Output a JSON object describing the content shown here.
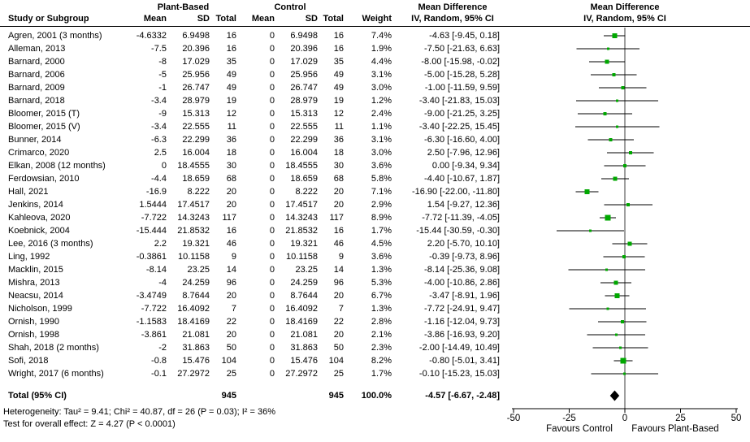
{
  "groups": {
    "plant_based": "Plant-Based",
    "control": "Control"
  },
  "columns": {
    "study": "Study or Subgroup",
    "mean": "Mean",
    "sd": "SD",
    "total": "Total",
    "weight": "Weight"
  },
  "md_header": {
    "line1": "Mean Difference",
    "line2": "IV, Random, 95% CI"
  },
  "footer": {
    "heterogeneity": "Heterogeneity: Tau² = 9.41; Chi² = 40.87, df = 26 (P = 0.03); I² = 36%",
    "overall_effect": "Test for overall effect: Z = 4.27 (P < 0.0001)"
  },
  "colors": {
    "marker": "#00a800",
    "diamond": "#000000",
    "line": "#000000",
    "zero_line": "#3c3c3c"
  },
  "chart_data": {
    "type": "scatter",
    "subtype": "forest-plot",
    "title": "Mean Difference IV, Random, 95% CI",
    "x_axis": {
      "range": [
        -50,
        50
      ],
      "ticks": [
        "-50",
        "-25",
        "0",
        "25",
        "50"
      ],
      "left_label": "Favours Control",
      "right_label": "Favours Plant-Based"
    },
    "studies": [
      {
        "name": "Agren, 2001 (3 months)",
        "pb_mean": "-4.6332",
        "pb_sd": "6.9498",
        "pb_total": "16",
        "c_mean": "0",
        "c_sd": "6.9498",
        "c_total": "16",
        "weight": "7.4%",
        "ci_text": "-4.63 [-9.45, 0.18]",
        "md": -4.63,
        "ci_low": -9.45,
        "ci_high": 0.18
      },
      {
        "name": "Alleman, 2013",
        "pb_mean": "-7.5",
        "pb_sd": "20.396",
        "pb_total": "16",
        "c_mean": "0",
        "c_sd": "20.396",
        "c_total": "16",
        "weight": "1.9%",
        "ci_text": "-7.50 [-21.63, 6.63]",
        "md": -7.5,
        "ci_low": -21.63,
        "ci_high": 6.63
      },
      {
        "name": "Barnard, 2000",
        "pb_mean": "-8",
        "pb_sd": "17.029",
        "pb_total": "35",
        "c_mean": "0",
        "c_sd": "17.029",
        "c_total": "35",
        "weight": "4.4%",
        "ci_text": "-8.00 [-15.98, -0.02]",
        "md": -8.0,
        "ci_low": -15.98,
        "ci_high": -0.02
      },
      {
        "name": "Barnard, 2006",
        "pb_mean": "-5",
        "pb_sd": "25.956",
        "pb_total": "49",
        "c_mean": "0",
        "c_sd": "25.956",
        "c_total": "49",
        "weight": "3.1%",
        "ci_text": "-5.00 [-15.28, 5.28]",
        "md": -5.0,
        "ci_low": -15.28,
        "ci_high": 5.28
      },
      {
        "name": "Barnard, 2009",
        "pb_mean": "-1",
        "pb_sd": "26.747",
        "pb_total": "49",
        "c_mean": "0",
        "c_sd": "26.747",
        "c_total": "49",
        "weight": "3.0%",
        "ci_text": "-1.00 [-11.59, 9.59]",
        "md": -1.0,
        "ci_low": -11.59,
        "ci_high": 9.59
      },
      {
        "name": "Barnard, 2018",
        "pb_mean": "-3.4",
        "pb_sd": "28.979",
        "pb_total": "19",
        "c_mean": "0",
        "c_sd": "28.979",
        "c_total": "19",
        "weight": "1.2%",
        "ci_text": "-3.40 [-21.83, 15.03]",
        "md": -3.4,
        "ci_low": -21.83,
        "ci_high": 15.03
      },
      {
        "name": "Bloomer, 2015 (T)",
        "pb_mean": "-9",
        "pb_sd": "15.313",
        "pb_total": "12",
        "c_mean": "0",
        "c_sd": "15.313",
        "c_total": "12",
        "weight": "2.4%",
        "ci_text": "-9.00 [-21.25, 3.25]",
        "md": -9.0,
        "ci_low": -21.25,
        "ci_high": 3.25
      },
      {
        "name": "Bloomer, 2015 (V)",
        "pb_mean": "-3.4",
        "pb_sd": "22.555",
        "pb_total": "11",
        "c_mean": "0",
        "c_sd": "22.555",
        "c_total": "11",
        "weight": "1.1%",
        "ci_text": "-3.40 [-22.25, 15.45]",
        "md": -3.4,
        "ci_low": -22.25,
        "ci_high": 15.45
      },
      {
        "name": "Bunner, 2014",
        "pb_mean": "-6.3",
        "pb_sd": "22.299",
        "pb_total": "36",
        "c_mean": "0",
        "c_sd": "22.299",
        "c_total": "36",
        "weight": "3.1%",
        "ci_text": "-6.30 [-16.60, 4.00]",
        "md": -6.3,
        "ci_low": -16.6,
        "ci_high": 4.0
      },
      {
        "name": "Crimarco, 2020",
        "pb_mean": "2.5",
        "pb_sd": "16.004",
        "pb_total": "18",
        "c_mean": "0",
        "c_sd": "16.004",
        "c_total": "18",
        "weight": "3.0%",
        "ci_text": "2.50 [-7.96, 12.96]",
        "md": 2.5,
        "ci_low": -7.96,
        "ci_high": 12.96
      },
      {
        "name": "Elkan, 2008 (12 months)",
        "pb_mean": "0",
        "pb_sd": "18.4555",
        "pb_total": "30",
        "c_mean": "0",
        "c_sd": "18.4555",
        "c_total": "30",
        "weight": "3.6%",
        "ci_text": "0.00 [-9.34, 9.34]",
        "md": 0.0,
        "ci_low": -9.34,
        "ci_high": 9.34
      },
      {
        "name": "Ferdowsian, 2010",
        "pb_mean": "-4.4",
        "pb_sd": "18.659",
        "pb_total": "68",
        "c_mean": "0",
        "c_sd": "18.659",
        "c_total": "68",
        "weight": "5.8%",
        "ci_text": "-4.40 [-10.67, 1.87]",
        "md": -4.4,
        "ci_low": -10.67,
        "ci_high": 1.87
      },
      {
        "name": "Hall, 2021",
        "pb_mean": "-16.9",
        "pb_sd": "8.222",
        "pb_total": "20",
        "c_mean": "0",
        "c_sd": "8.222",
        "c_total": "20",
        "weight": "7.1%",
        "ci_text": "-16.90 [-22.00, -11.80]",
        "md": -16.9,
        "ci_low": -22.0,
        "ci_high": -11.8
      },
      {
        "name": "Jenkins, 2014",
        "pb_mean": "1.5444",
        "pb_sd": "17.4517",
        "pb_total": "20",
        "c_mean": "0",
        "c_sd": "17.4517",
        "c_total": "20",
        "weight": "2.9%",
        "ci_text": "1.54 [-9.27, 12.36]",
        "md": 1.54,
        "ci_low": -9.27,
        "ci_high": 12.36
      },
      {
        "name": "Kahleova, 2020",
        "pb_mean": "-7.722",
        "pb_sd": "14.3243",
        "pb_total": "117",
        "c_mean": "0",
        "c_sd": "14.3243",
        "c_total": "117",
        "weight": "8.9%",
        "ci_text": "-7.72 [-11.39, -4.05]",
        "md": -7.72,
        "ci_low": -11.39,
        "ci_high": -4.05
      },
      {
        "name": "Koebnick, 2004",
        "pb_mean": "-15.444",
        "pb_sd": "21.8532",
        "pb_total": "16",
        "c_mean": "0",
        "c_sd": "21.8532",
        "c_total": "16",
        "weight": "1.7%",
        "ci_text": "-15.44 [-30.59, -0.30]",
        "md": -15.44,
        "ci_low": -30.59,
        "ci_high": -0.3
      },
      {
        "name": "Lee, 2016 (3 months)",
        "pb_mean": "2.2",
        "pb_sd": "19.321",
        "pb_total": "46",
        "c_mean": "0",
        "c_sd": "19.321",
        "c_total": "46",
        "weight": "4.5%",
        "ci_text": "2.20 [-5.70, 10.10]",
        "md": 2.2,
        "ci_low": -5.7,
        "ci_high": 10.1
      },
      {
        "name": "Ling, 1992",
        "pb_mean": "-0.3861",
        "pb_sd": "10.1158",
        "pb_total": "9",
        "c_mean": "0",
        "c_sd": "10.1158",
        "c_total": "9",
        "weight": "3.6%",
        "ci_text": "-0.39 [-9.73, 8.96]",
        "md": -0.39,
        "ci_low": -9.73,
        "ci_high": 8.96
      },
      {
        "name": "Macklin, 2015",
        "pb_mean": "-8.14",
        "pb_sd": "23.25",
        "pb_total": "14",
        "c_mean": "0",
        "c_sd": "23.25",
        "c_total": "14",
        "weight": "1.3%",
        "ci_text": "-8.14 [-25.36, 9.08]",
        "md": -8.14,
        "ci_low": -25.36,
        "ci_high": 9.08
      },
      {
        "name": "Mishra, 2013",
        "pb_mean": "-4",
        "pb_sd": "24.259",
        "pb_total": "96",
        "c_mean": "0",
        "c_sd": "24.259",
        "c_total": "96",
        "weight": "5.3%",
        "ci_text": "-4.00 [-10.86, 2.86]",
        "md": -4.0,
        "ci_low": -10.86,
        "ci_high": 2.86
      },
      {
        "name": "Neacsu, 2014",
        "pb_mean": "-3.4749",
        "pb_sd": "8.7644",
        "pb_total": "20",
        "c_mean": "0",
        "c_sd": "8.7644",
        "c_total": "20",
        "weight": "6.7%",
        "ci_text": "-3.47 [-8.91, 1.96]",
        "md": -3.47,
        "ci_low": -8.91,
        "ci_high": 1.96
      },
      {
        "name": "Nicholson, 1999",
        "pb_mean": "-7.722",
        "pb_sd": "16.4092",
        "pb_total": "7",
        "c_mean": "0",
        "c_sd": "16.4092",
        "c_total": "7",
        "weight": "1.3%",
        "ci_text": "-7.72 [-24.91, 9.47]",
        "md": -7.72,
        "ci_low": -24.91,
        "ci_high": 9.47
      },
      {
        "name": "Ornish, 1990",
        "pb_mean": "-1.1583",
        "pb_sd": "18.4169",
        "pb_total": "22",
        "c_mean": "0",
        "c_sd": "18.4169",
        "c_total": "22",
        "weight": "2.8%",
        "ci_text": "-1.16 [-12.04, 9.73]",
        "md": -1.16,
        "ci_low": -12.04,
        "ci_high": 9.73
      },
      {
        "name": "Ornish, 1998",
        "pb_mean": "-3.861",
        "pb_sd": "21.081",
        "pb_total": "20",
        "c_mean": "0",
        "c_sd": "21.081",
        "c_total": "20",
        "weight": "2.1%",
        "ci_text": "-3.86 [-16.93, 9.20]",
        "md": -3.86,
        "ci_low": -16.93,
        "ci_high": 9.2
      },
      {
        "name": "Shah, 2018 (2 months)",
        "pb_mean": "-2",
        "pb_sd": "31.863",
        "pb_total": "50",
        "c_mean": "0",
        "c_sd": "31.863",
        "c_total": "50",
        "weight": "2.3%",
        "ci_text": "-2.00 [-14.49, 10.49]",
        "md": -2.0,
        "ci_low": -14.49,
        "ci_high": 10.49
      },
      {
        "name": "Sofi, 2018",
        "pb_mean": "-0.8",
        "pb_sd": "15.476",
        "pb_total": "104",
        "c_mean": "0",
        "c_sd": "15.476",
        "c_total": "104",
        "weight": "8.2%",
        "ci_text": "-0.80 [-5.01, 3.41]",
        "md": -0.8,
        "ci_low": -5.01,
        "ci_high": 3.41
      },
      {
        "name": "Wright, 2017 (6 months)",
        "pb_mean": "-0.1",
        "pb_sd": "27.2972",
        "pb_total": "25",
        "c_mean": "0",
        "c_sd": "27.2972",
        "c_total": "25",
        "weight": "1.7%",
        "ci_text": "-0.10 [-15.23, 15.03]",
        "md": -0.1,
        "ci_low": -15.23,
        "ci_high": 15.03
      }
    ],
    "total": {
      "label": "Total (95% CI)",
      "pb_total": "945",
      "c_total": "945",
      "weight": "100.0%",
      "ci_text": "-4.57 [-6.67, -2.48]",
      "md": -4.57,
      "ci_low": -6.67,
      "ci_high": -2.48
    }
  }
}
